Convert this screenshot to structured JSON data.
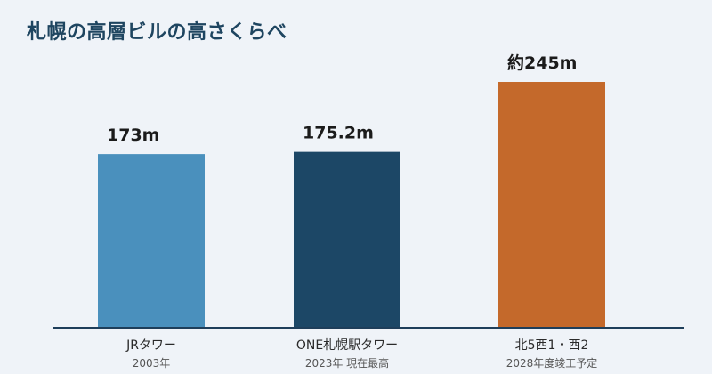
{
  "title": "札幌の高層ビルの高さくらべ",
  "chart_data": {
    "type": "bar",
    "title": "札幌の高層ビルの高さくらべ",
    "xlabel": "",
    "ylabel": "",
    "ylim": [
      0,
      270
    ],
    "unit": "m",
    "categories": [
      "JRタワー",
      "ONE札幌駅タワー",
      "北5西1・西2"
    ],
    "notes": [
      "2003年",
      "2023年 現在最高",
      "2028年度竣工予定"
    ],
    "values": [
      173,
      175.2,
      245
    ],
    "value_labels": [
      "173m",
      "175.2m",
      "約245m"
    ],
    "colors": [
      "#4a90bd",
      "#1c4766",
      "#c4692b"
    ],
    "baseline_color": "#1e3e5a",
    "grid": false,
    "legend": "none"
  }
}
